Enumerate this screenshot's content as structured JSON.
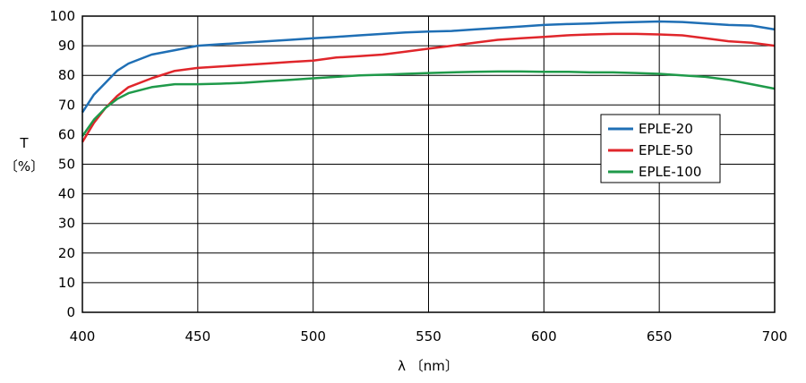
{
  "chart_data": {
    "type": "line",
    "xlabel": "λ 〔nm〕",
    "ylabel_symbol": "T",
    "ylabel_unit": "〔%〕",
    "xlim": [
      400,
      700
    ],
    "ylim": [
      0,
      100
    ],
    "x_ticks": [
      400,
      450,
      500,
      550,
      600,
      650,
      700
    ],
    "y_ticks": [
      0,
      10,
      20,
      30,
      40,
      50,
      60,
      70,
      80,
      90,
      100
    ],
    "grid": true,
    "legend_position": "right",
    "x": [
      400,
      405,
      410,
      415,
      420,
      430,
      440,
      450,
      460,
      470,
      480,
      490,
      500,
      510,
      520,
      530,
      540,
      550,
      560,
      570,
      580,
      590,
      600,
      610,
      620,
      630,
      640,
      650,
      660,
      670,
      680,
      690,
      700
    ],
    "series": [
      {
        "name": "EPLE-20",
        "color": "#1f6fb5",
        "values": [
          67.5,
          73.5,
          77.5,
          81.5,
          84,
          87,
          88.5,
          90,
          90.5,
          91,
          91.5,
          92,
          92.5,
          93,
          93.5,
          94,
          94.5,
          94.8,
          95,
          95.5,
          96,
          96.5,
          97,
          97.3,
          97.5,
          97.8,
          98,
          98.2,
          98,
          97.5,
          97,
          96.8,
          95.5
        ]
      },
      {
        "name": "EPLE-50",
        "color": "#e0262b",
        "values": [
          57.5,
          64,
          69,
          73,
          76,
          79,
          81.5,
          82.5,
          83,
          83.5,
          84,
          84.5,
          85,
          86,
          86.5,
          87,
          88,
          89,
          90,
          91,
          92,
          92.5,
          93,
          93.5,
          93.8,
          94,
          94,
          93.8,
          93.5,
          92.5,
          91.5,
          91,
          90
        ]
      },
      {
        "name": "EPLE-100",
        "color": "#1f9a4a",
        "values": [
          59.5,
          65,
          69,
          72,
          74,
          76,
          77,
          77,
          77.2,
          77.5,
          78,
          78.5,
          79,
          79.5,
          80,
          80.2,
          80.5,
          80.8,
          81,
          81.2,
          81.3,
          81.3,
          81.2,
          81.2,
          81,
          81,
          80.8,
          80.5,
          80,
          79.5,
          78.5,
          77,
          75.5
        ]
      }
    ]
  }
}
